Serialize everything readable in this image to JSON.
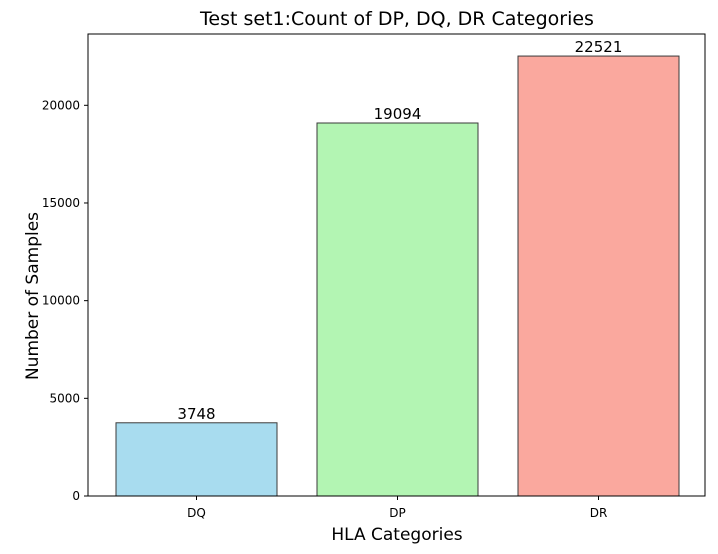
{
  "chart_data": {
    "type": "bar",
    "title": "Test set1:Count of DP, DQ, DR Categories",
    "xlabel": "HLA Categories",
    "ylabel": "Number of Samples",
    "categories": [
      "DQ",
      "DP",
      "DR"
    ],
    "values": [
      3748,
      19094,
      22521
    ],
    "data_labels": [
      "3748",
      "19094",
      "22521"
    ],
    "colors": [
      "#a8dcef",
      "#b3f5b3",
      "#faa89e"
    ],
    "edge_color": "#3a3a3a",
    "ylim": [
      0,
      23650
    ],
    "yticks": [
      0,
      5000,
      10000,
      15000,
      20000
    ],
    "ytick_labels": [
      "0",
      "5000",
      "10000",
      "15000",
      "20000"
    ],
    "grid": false,
    "legend": "none"
  }
}
